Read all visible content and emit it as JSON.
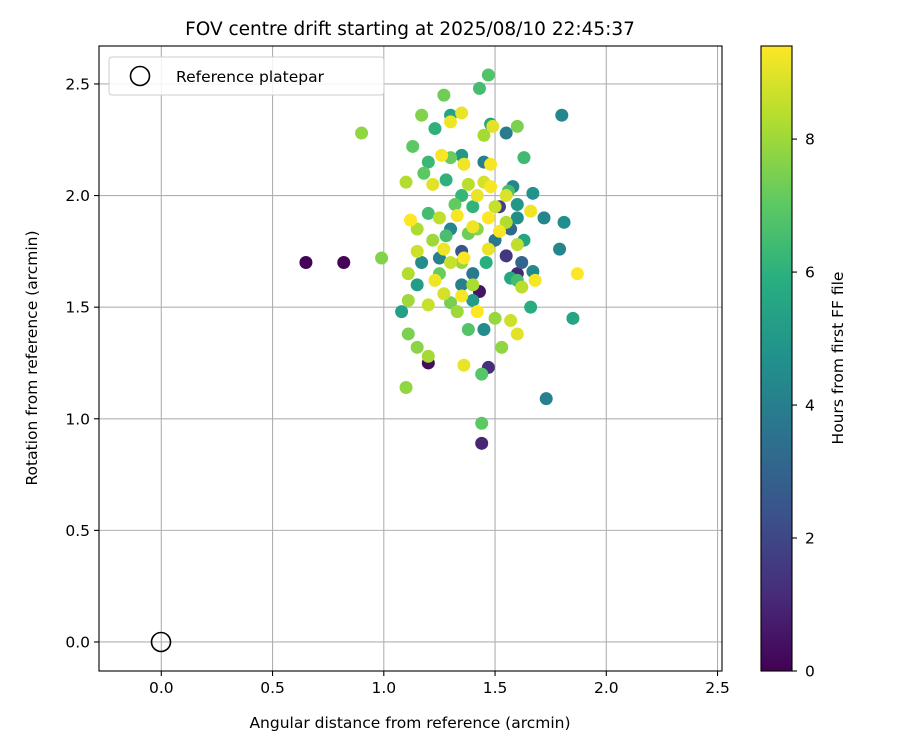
{
  "chart_data": {
    "type": "scatter",
    "title": "FOV centre drift starting at 2025/08/10 22:45:37",
    "xlabel": "Angular distance from reference (arcmin)",
    "ylabel": "Rotation from reference (arcmin)",
    "xlim": [
      -0.28,
      2.52
    ],
    "ylim": [
      -0.13,
      2.67
    ],
    "xticks": [
      "0.0",
      "0.5",
      "1.0",
      "1.5",
      "2.0",
      "2.5"
    ],
    "yticks": [
      "0.0",
      "0.5",
      "1.0",
      "1.5",
      "2.0",
      "2.5"
    ],
    "grid": true,
    "legend": {
      "placement": "upper left",
      "label": "Reference platepar"
    },
    "reference_point": {
      "x": 0.0,
      "y": 0.0
    },
    "colorbar": {
      "label": "Hours from first FF file",
      "range": [
        0,
        9.4
      ],
      "ticks": [
        "0",
        "2",
        "4",
        "6",
        "8"
      ],
      "colormap": "viridis"
    },
    "points": [
      {
        "x": 0.65,
        "y": 1.7,
        "h": 0.05
      },
      {
        "x": 0.82,
        "y": 1.7,
        "h": 0.1
      },
      {
        "x": 1.2,
        "y": 1.25,
        "h": 0.3
      },
      {
        "x": 1.43,
        "y": 1.57,
        "h": 0.5
      },
      {
        "x": 1.44,
        "y": 0.89,
        "h": 1.0
      },
      {
        "x": 1.47,
        "y": 1.23,
        "h": 1.2
      },
      {
        "x": 1.6,
        "y": 1.65,
        "h": 1.0
      },
      {
        "x": 1.55,
        "y": 1.73,
        "h": 1.5
      },
      {
        "x": 1.52,
        "y": 1.95,
        "h": 1.8
      },
      {
        "x": 1.35,
        "y": 1.75,
        "h": 2.5
      },
      {
        "x": 1.62,
        "y": 1.7,
        "h": 3.0
      },
      {
        "x": 1.57,
        "y": 1.85,
        "h": 3.2
      },
      {
        "x": 1.73,
        "y": 1.09,
        "h": 4.0
      },
      {
        "x": 1.8,
        "y": 2.36,
        "h": 4.3
      },
      {
        "x": 1.81,
        "y": 1.88,
        "h": 4.5
      },
      {
        "x": 1.72,
        "y": 1.9,
        "h": 4.2
      },
      {
        "x": 1.79,
        "y": 1.76,
        "h": 4.3
      },
      {
        "x": 1.67,
        "y": 1.66,
        "h": 4.4
      },
      {
        "x": 1.55,
        "y": 2.28,
        "h": 3.9
      },
      {
        "x": 1.58,
        "y": 2.04,
        "h": 4.2
      },
      {
        "x": 1.45,
        "y": 2.15,
        "h": 4.0
      },
      {
        "x": 1.5,
        "y": 1.8,
        "h": 3.7
      },
      {
        "x": 1.4,
        "y": 1.65,
        "h": 3.8
      },
      {
        "x": 1.35,
        "y": 1.6,
        "h": 4.0
      },
      {
        "x": 1.3,
        "y": 1.85,
        "h": 4.3
      },
      {
        "x": 1.25,
        "y": 1.72,
        "h": 4.1
      },
      {
        "x": 1.17,
        "y": 1.7,
        "h": 4.5
      },
      {
        "x": 1.6,
        "y": 1.9,
        "h": 4.6
      },
      {
        "x": 1.67,
        "y": 2.01,
        "h": 4.8
      },
      {
        "x": 1.45,
        "y": 1.4,
        "h": 4.5
      },
      {
        "x": 1.6,
        "y": 1.96,
        "h": 5.0
      },
      {
        "x": 1.15,
        "y": 1.6,
        "h": 5.2
      },
      {
        "x": 1.35,
        "y": 2.18,
        "h": 5.0
      },
      {
        "x": 1.4,
        "y": 1.53,
        "h": 5.1
      },
      {
        "x": 1.08,
        "y": 1.48,
        "h": 5.3
      },
      {
        "x": 1.48,
        "y": 2.32,
        "h": 5.5
      },
      {
        "x": 1.3,
        "y": 2.36,
        "h": 5.4
      },
      {
        "x": 1.85,
        "y": 1.45,
        "h": 5.5
      },
      {
        "x": 1.66,
        "y": 1.5,
        "h": 5.8
      },
      {
        "x": 1.57,
        "y": 1.63,
        "h": 5.6
      },
      {
        "x": 1.63,
        "y": 1.8,
        "h": 5.5
      },
      {
        "x": 1.23,
        "y": 2.3,
        "h": 6.0
      },
      {
        "x": 1.35,
        "y": 2.0,
        "h": 6.2
      },
      {
        "x": 1.28,
        "y": 2.07,
        "h": 6.0
      },
      {
        "x": 1.2,
        "y": 2.15,
        "h": 6.3
      },
      {
        "x": 1.46,
        "y": 1.7,
        "h": 5.9
      },
      {
        "x": 1.4,
        "y": 1.95,
        "h": 6.1
      },
      {
        "x": 1.47,
        "y": 2.54,
        "h": 6.8
      },
      {
        "x": 1.43,
        "y": 2.48,
        "h": 6.5
      },
      {
        "x": 1.63,
        "y": 2.17,
        "h": 6.4
      },
      {
        "x": 1.56,
        "y": 2.02,
        "h": 6.6
      },
      {
        "x": 1.6,
        "y": 1.62,
        "h": 6.5
      },
      {
        "x": 1.2,
        "y": 1.92,
        "h": 6.5
      },
      {
        "x": 1.28,
        "y": 1.82,
        "h": 6.6
      },
      {
        "x": 1.38,
        "y": 1.4,
        "h": 6.8
      },
      {
        "x": 1.44,
        "y": 1.2,
        "h": 6.9
      },
      {
        "x": 1.44,
        "y": 0.98,
        "h": 7.0
      },
      {
        "x": 1.13,
        "y": 2.22,
        "h": 7.0
      },
      {
        "x": 1.18,
        "y": 2.1,
        "h": 7.0
      },
      {
        "x": 1.3,
        "y": 2.17,
        "h": 7.2
      },
      {
        "x": 1.32,
        "y": 1.96,
        "h": 7.1
      },
      {
        "x": 1.38,
        "y": 1.83,
        "h": 7.3
      },
      {
        "x": 1.25,
        "y": 1.65,
        "h": 7.2
      },
      {
        "x": 1.3,
        "y": 1.52,
        "h": 7.4
      },
      {
        "x": 1.11,
        "y": 1.38,
        "h": 7.5
      },
      {
        "x": 1.1,
        "y": 1.14,
        "h": 7.8
      },
      {
        "x": 1.17,
        "y": 2.36,
        "h": 7.6
      },
      {
        "x": 1.6,
        "y": 2.31,
        "h": 7.5
      },
      {
        "x": 1.15,
        "y": 1.32,
        "h": 7.7
      },
      {
        "x": 0.9,
        "y": 2.28,
        "h": 7.8
      },
      {
        "x": 0.99,
        "y": 1.72,
        "h": 7.6
      },
      {
        "x": 1.27,
        "y": 2.45,
        "h": 7.3
      },
      {
        "x": 1.53,
        "y": 1.32,
        "h": 7.8
      },
      {
        "x": 1.5,
        "y": 1.45,
        "h": 7.9
      },
      {
        "x": 1.42,
        "y": 1.85,
        "h": 7.7
      },
      {
        "x": 1.35,
        "y": 1.7,
        "h": 7.9
      },
      {
        "x": 1.22,
        "y": 1.8,
        "h": 8.0
      },
      {
        "x": 1.15,
        "y": 1.85,
        "h": 8.2
      },
      {
        "x": 1.1,
        "y": 2.06,
        "h": 8.3
      },
      {
        "x": 1.11,
        "y": 1.53,
        "h": 8.0
      },
      {
        "x": 1.11,
        "y": 1.65,
        "h": 8.3
      },
      {
        "x": 1.2,
        "y": 1.28,
        "h": 8.1
      },
      {
        "x": 1.33,
        "y": 1.48,
        "h": 8.0
      },
      {
        "x": 1.4,
        "y": 1.6,
        "h": 8.2
      },
      {
        "x": 1.45,
        "y": 2.27,
        "h": 8.1
      },
      {
        "x": 1.38,
        "y": 2.05,
        "h": 8.4
      },
      {
        "x": 1.55,
        "y": 1.88,
        "h": 8.3
      },
      {
        "x": 1.62,
        "y": 1.59,
        "h": 8.4
      },
      {
        "x": 1.6,
        "y": 1.78,
        "h": 8.5
      },
      {
        "x": 1.5,
        "y": 1.95,
        "h": 8.6
      },
      {
        "x": 1.25,
        "y": 1.9,
        "h": 8.5
      },
      {
        "x": 1.3,
        "y": 1.7,
        "h": 8.6
      },
      {
        "x": 1.57,
        "y": 1.44,
        "h": 8.7
      },
      {
        "x": 1.45,
        "y": 2.06,
        "h": 8.8
      },
      {
        "x": 1.2,
        "y": 1.51,
        "h": 8.6
      },
      {
        "x": 1.15,
        "y": 1.75,
        "h": 8.7
      },
      {
        "x": 1.27,
        "y": 1.56,
        "h": 8.8
      },
      {
        "x": 1.55,
        "y": 2.0,
        "h": 8.9
      },
      {
        "x": 1.35,
        "y": 2.37,
        "h": 9.1
      },
      {
        "x": 1.49,
        "y": 2.31,
        "h": 9.0
      },
      {
        "x": 1.3,
        "y": 2.33,
        "h": 9.2
      },
      {
        "x": 1.26,
        "y": 2.18,
        "h": 9.3
      },
      {
        "x": 1.36,
        "y": 2.14,
        "h": 9.2
      },
      {
        "x": 1.42,
        "y": 2.0,
        "h": 9.1
      },
      {
        "x": 1.48,
        "y": 2.04,
        "h": 9.3
      },
      {
        "x": 1.33,
        "y": 1.91,
        "h": 9.3
      },
      {
        "x": 1.4,
        "y": 1.86,
        "h": 9.2
      },
      {
        "x": 1.47,
        "y": 1.9,
        "h": 9.4
      },
      {
        "x": 1.52,
        "y": 1.84,
        "h": 9.3
      },
      {
        "x": 1.27,
        "y": 1.76,
        "h": 9.2
      },
      {
        "x": 1.36,
        "y": 1.72,
        "h": 9.4
      },
      {
        "x": 1.47,
        "y": 1.76,
        "h": 9.1
      },
      {
        "x": 1.35,
        "y": 1.55,
        "h": 9.3
      },
      {
        "x": 1.42,
        "y": 1.48,
        "h": 9.4
      },
      {
        "x": 1.23,
        "y": 1.62,
        "h": 9.2
      },
      {
        "x": 1.12,
        "y": 1.89,
        "h": 9.4
      },
      {
        "x": 1.87,
        "y": 1.65,
        "h": 9.4
      },
      {
        "x": 1.68,
        "y": 1.62,
        "h": 9.3
      },
      {
        "x": 1.66,
        "y": 1.93,
        "h": 9.2
      },
      {
        "x": 1.6,
        "y": 1.38,
        "h": 9.0
      },
      {
        "x": 1.36,
        "y": 1.24,
        "h": 9.1
      },
      {
        "x": 1.22,
        "y": 2.05,
        "h": 9.0
      },
      {
        "x": 1.48,
        "y": 2.14,
        "h": 9.3
      }
    ]
  }
}
